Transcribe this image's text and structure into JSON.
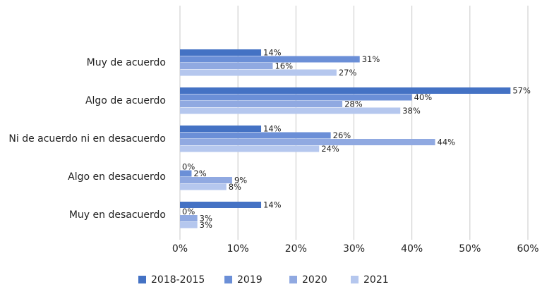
{
  "chart_data": {
    "type": "bar",
    "orientation": "horizontal",
    "categories": [
      "Muy de acuerdo",
      "Algo de acuerdo",
      "Ni de acuerdo ni en desacuerdo",
      "Algo en desacuerdo",
      "Muy en desacuerdo"
    ],
    "series": [
      {
        "name": "2018-2015",
        "color": "#4472c4",
        "values": [
          14,
          57,
          14,
          0,
          14
        ],
        "value_labels": [
          "14%",
          "57%",
          "14%",
          "0%",
          "14%"
        ]
      },
      {
        "name": "2019",
        "color": "#6b8fd7",
        "values": [
          31,
          40,
          26,
          2,
          0
        ],
        "value_labels": [
          "31%",
          "40%",
          "26%",
          "2%",
          "0%"
        ]
      },
      {
        "name": "2020",
        "color": "#90a9e1",
        "values": [
          16,
          28,
          44,
          9,
          3
        ],
        "value_labels": [
          "16%",
          "28%",
          "44%",
          "9%",
          "3%"
        ]
      },
      {
        "name": "2021",
        "color": "#b5c7ee",
        "values": [
          27,
          38,
          24,
          8,
          3
        ],
        "value_labels": [
          "27%",
          "38%",
          "24%",
          "8%",
          "3%"
        ]
      }
    ],
    "xlim": [
      0,
      60
    ],
    "xticks": [
      {
        "value": 0,
        "label": "0%"
      },
      {
        "value": 10,
        "label": "10%"
      },
      {
        "value": 20,
        "label": "20%"
      },
      {
        "value": 30,
        "label": "30%"
      },
      {
        "value": 40,
        "label": "40%"
      },
      {
        "value": 50,
        "label": "50%"
      },
      {
        "value": 60,
        "label": "60%"
      }
    ],
    "grid": true,
    "legend": "bottom"
  }
}
